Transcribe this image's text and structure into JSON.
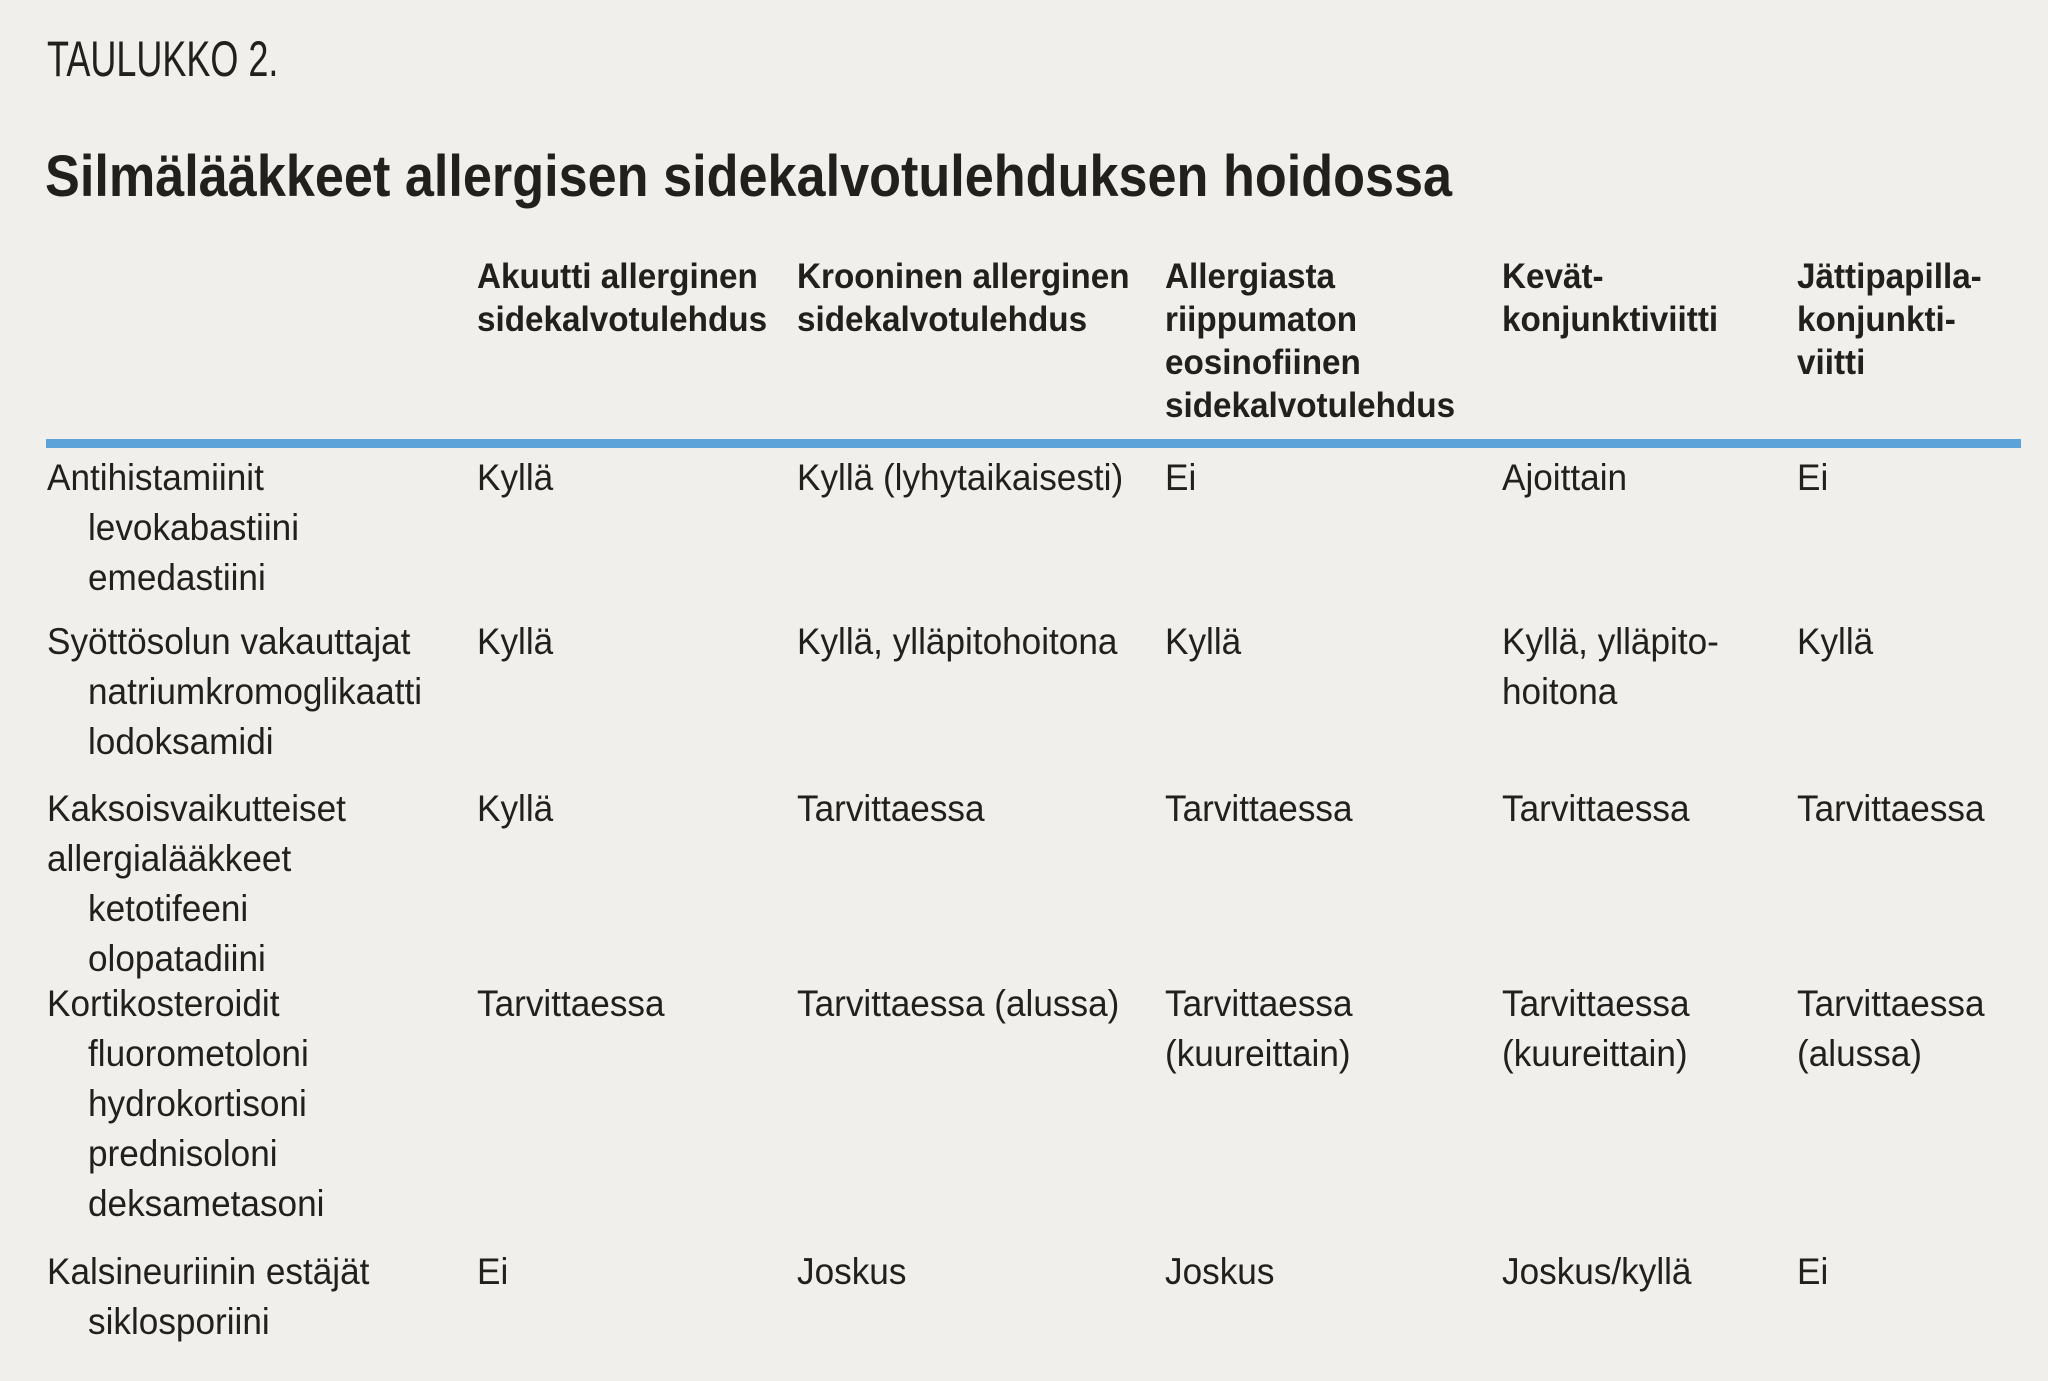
{
  "page": {
    "label": "TAULUKKO 2.",
    "title": "Silmälääkkeet allergisen sidekalvotulehduksen hoidossa"
  },
  "colors": {
    "background": "#f1efeb",
    "text": "#21201c",
    "header_rule": "#5ba3d8"
  },
  "table": {
    "header": {
      "columns": [
        {
          "lines": [
            "Akuutti allerginen",
            "sidekalvotulehdus"
          ]
        },
        {
          "lines": [
            "Krooninen allerginen",
            "sidekalvotulehdus"
          ]
        },
        {
          "lines": [
            "Allergiasta",
            "riippumaton",
            "eosinofiinen",
            "sidekalvotulehdus"
          ]
        },
        {
          "lines": [
            "Kevät-",
            "konjunktiviitti"
          ]
        },
        {
          "lines": [
            "Jättipapilla-",
            "konjunkti-",
            "viitti"
          ]
        }
      ]
    },
    "rows": [
      {
        "category_lines": [
          "Antihistamiinit"
        ],
        "drug_lines": [
          "levokabastiini",
          "emedastiini"
        ],
        "cells": [
          [
            "Kyllä"
          ],
          [
            "Kyllä (lyhytaikaisesti)"
          ],
          [
            "Ei"
          ],
          [
            "Ajoittain"
          ],
          [
            "Ei"
          ]
        ]
      },
      {
        "category_lines": [
          "Syöttösolun vakauttajat"
        ],
        "drug_lines": [
          "natriumkromoglikaatti",
          "lodoksamidi"
        ],
        "cells": [
          [
            "Kyllä"
          ],
          [
            "Kyllä, ylläpitohoitona"
          ],
          [
            "Kyllä"
          ],
          [
            "Kyllä, ylläpito-",
            "hoitona"
          ],
          [
            "Kyllä"
          ]
        ]
      },
      {
        "category_lines": [
          "Kaksoisvaikutteiset",
          "allergialääkkeet"
        ],
        "drug_lines": [
          "ketotifeeni",
          "olopatadiini"
        ],
        "cells": [
          [
            "Kyllä"
          ],
          [
            "Tarvittaessa"
          ],
          [
            "Tarvittaessa"
          ],
          [
            "Tarvittaessa"
          ],
          [
            "Tarvittaessa"
          ]
        ]
      },
      {
        "category_lines": [
          "Kortikosteroidit"
        ],
        "drug_lines": [
          "fluorometoloni",
          "hydrokortisoni",
          "prednisoloni",
          "deksametasoni"
        ],
        "cells": [
          [
            "Tarvittaessa"
          ],
          [
            "Tarvittaessa (alussa)"
          ],
          [
            "Tarvittaessa",
            "(kuureittain)"
          ],
          [
            "Tarvittaessa",
            "(kuureittain)"
          ],
          [
            "Tarvittaessa",
            "(alussa)"
          ]
        ]
      },
      {
        "category_lines": [
          "Kalsineuriinin estäjät"
        ],
        "drug_lines": [
          "siklosporiini"
        ],
        "cells": [
          [
            "Ei"
          ],
          [
            "Joskus"
          ],
          [
            "Joskus"
          ],
          [
            "Joskus/kyllä"
          ],
          [
            "Ei"
          ]
        ]
      }
    ]
  }
}
